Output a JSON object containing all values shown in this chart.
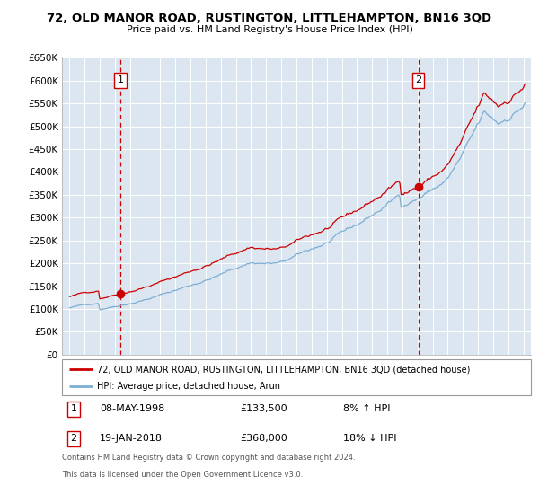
{
  "title": "72, OLD MANOR ROAD, RUSTINGTON, LITTLEHAMPTON, BN16 3QD",
  "subtitle": "Price paid vs. HM Land Registry's House Price Index (HPI)",
  "legend_line1": "72, OLD MANOR ROAD, RUSTINGTON, LITTLEHAMPTON, BN16 3QD (detached house)",
  "legend_line2": "HPI: Average price, detached house, Arun",
  "annotation1_date": "08-MAY-1998",
  "annotation1_price": "£133,500",
  "annotation1_hpi": "8% ↑ HPI",
  "annotation2_date": "19-JAN-2018",
  "annotation2_price": "£368,000",
  "annotation2_hpi": "18% ↓ HPI",
  "footnote1": "Contains HM Land Registry data © Crown copyright and database right 2024.",
  "footnote2": "This data is licensed under the Open Government Licence v3.0.",
  "sale1_x": 1998.35,
  "sale1_y": 133500,
  "sale2_x": 2018.05,
  "sale2_y": 368000,
  "red_color": "#cc0000",
  "blue_color": "#7bafd4",
  "bg_color": "#dce6f1",
  "grid_color": "#ffffff",
  "ylim": [
    0,
    650000
  ],
  "xlim_start": 1994.5,
  "xlim_end": 2025.5
}
